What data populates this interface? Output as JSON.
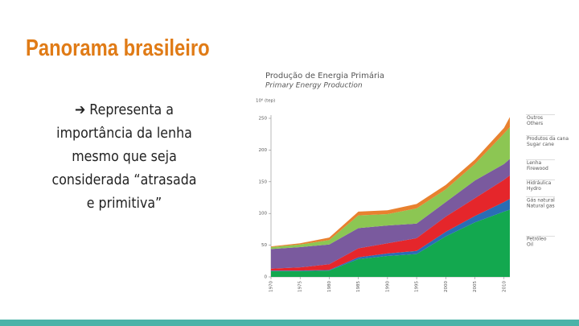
{
  "slide_title": "Panorama brasileiro",
  "bullet": "➔ Representa a importância da lenha mesmo que seja considerada “atrasada e primitiva”",
  "chart_data": {
    "type": "stacked-area",
    "title": "Produção de Energia Primária",
    "subtitle": "Primary Energy Production",
    "y_label": "10⁶ (tep)",
    "x": [
      1970,
      1975,
      1980,
      1985,
      1990,
      1995,
      2000,
      2005,
      2010,
      2011
    ],
    "xlim": [
      1970,
      2011
    ],
    "xticks": [
      1970,
      1975,
      1980,
      1985,
      1990,
      1995,
      2000,
      2005,
      2010
    ],
    "ylim": [
      0,
      250
    ],
    "yticks": [
      0,
      50,
      100,
      150,
      200,
      250
    ],
    "series": [
      {
        "name": "Petróleo",
        "name_en": "Oil",
        "color": "#13a84f",
        "values": [
          9,
          9,
          10,
          28,
          33,
          36,
          64,
          86,
          103,
          106
        ]
      },
      {
        "name": "Gás natural",
        "name_en": "Natural gas",
        "color": "#2a6db5",
        "values": [
          1,
          1,
          1,
          3,
          4,
          5,
          7,
          10,
          15,
          17
        ]
      },
      {
        "name": "Hidráulica",
        "name_en": "Hydro",
        "color": "#e5262b",
        "values": [
          3,
          5,
          9,
          14,
          16,
          20,
          24,
          28,
          35,
          37
        ]
      },
      {
        "name": "Lenha",
        "name_en": "Firewood",
        "color": "#7a5a9e",
        "values": [
          31,
          32,
          31,
          32,
          28,
          23,
          23,
          28,
          25,
          26
        ]
      },
      {
        "name": "Produtos da cana",
        "name_en": "Sugar cane",
        "color": "#8cc653",
        "values": [
          3,
          4,
          7,
          20,
          18,
          24,
          20,
          26,
          48,
          50
        ]
      },
      {
        "name": "Outros",
        "name_en": "Others",
        "color": "#e8812f",
        "values": [
          1,
          2,
          4,
          6,
          6,
          7,
          7,
          7,
          9,
          16
        ]
      }
    ]
  }
}
